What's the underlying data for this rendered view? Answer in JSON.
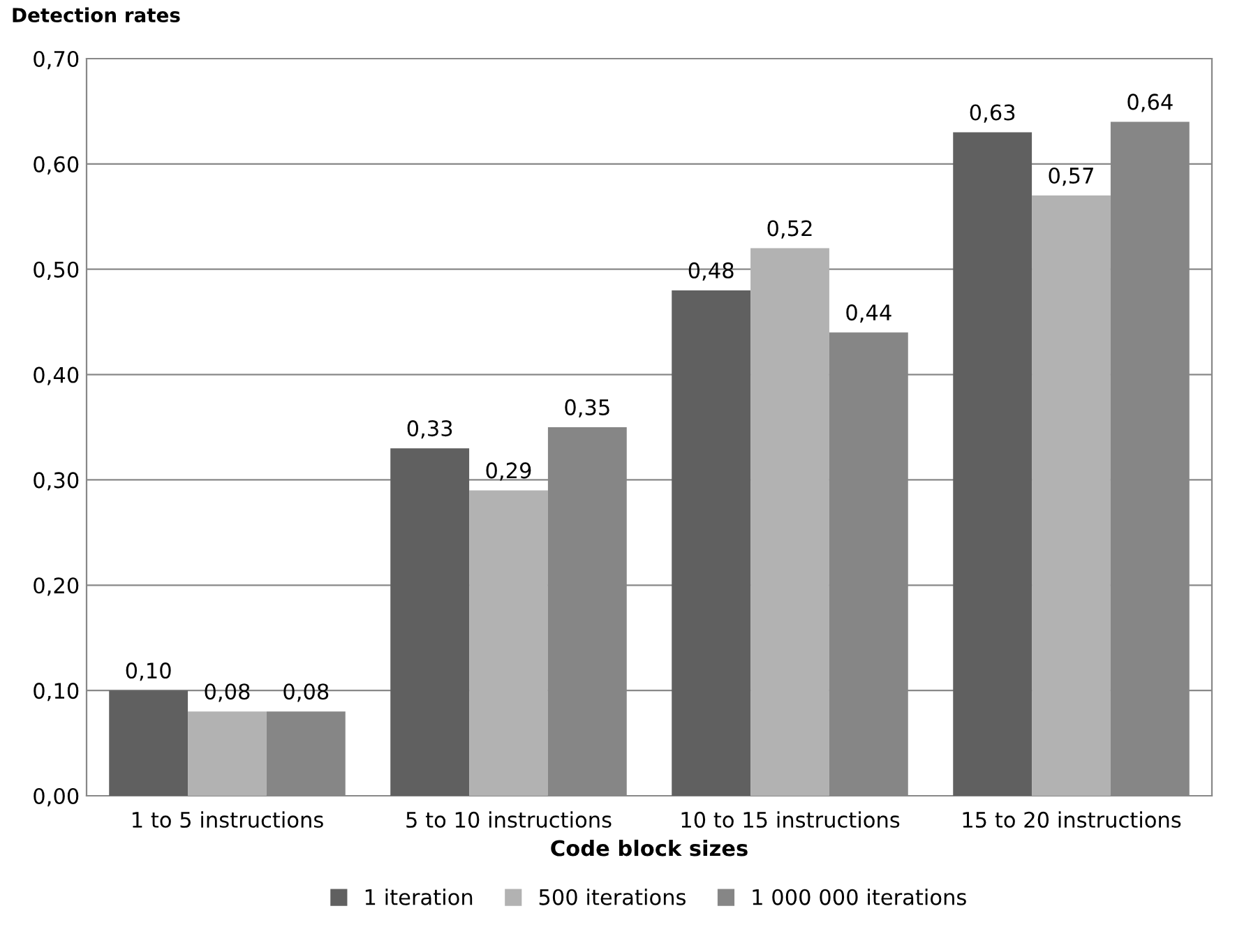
{
  "chart_data": {
    "type": "bar",
    "ylabel": "Detection rates",
    "xlabel": "Code block sizes",
    "categories": [
      "1 to 5 instructions",
      "5 to 10 instructions",
      "10 to 15 instructions",
      "15 to 20 instructions"
    ],
    "series": [
      {
        "name": "1 iteration",
        "color": "#606060",
        "values": [
          0.1,
          0.33,
          0.48,
          0.63
        ],
        "value_labels": [
          "0,10",
          "0,33",
          "0,48",
          "0,63"
        ]
      },
      {
        "name": "500 iterations",
        "color": "#b2b2b2",
        "values": [
          0.08,
          0.29,
          0.52,
          0.57
        ],
        "value_labels": [
          "0,08",
          "0,29",
          "0,52",
          "0,57"
        ]
      },
      {
        "name": "1 000 000 iterations",
        "color": "#868686",
        "values": [
          0.08,
          0.35,
          0.44,
          0.64
        ],
        "value_labels": [
          "0,08",
          "0,35",
          "0,44",
          "0,64"
        ]
      }
    ],
    "ylim": [
      0,
      0.7
    ],
    "yticks": [
      {
        "value": 0,
        "label": "0,00"
      },
      {
        "value": 0.1,
        "label": "0,10"
      },
      {
        "value": 0.2,
        "label": "0,20"
      },
      {
        "value": 0.3,
        "label": "0,30"
      },
      {
        "value": 0.4,
        "label": "0,40"
      },
      {
        "value": 0.5,
        "label": "0,50"
      },
      {
        "value": 0.6,
        "label": "0,60"
      },
      {
        "value": 0.7,
        "label": "0,70"
      }
    ],
    "grid": "y",
    "legend": "bottom"
  }
}
